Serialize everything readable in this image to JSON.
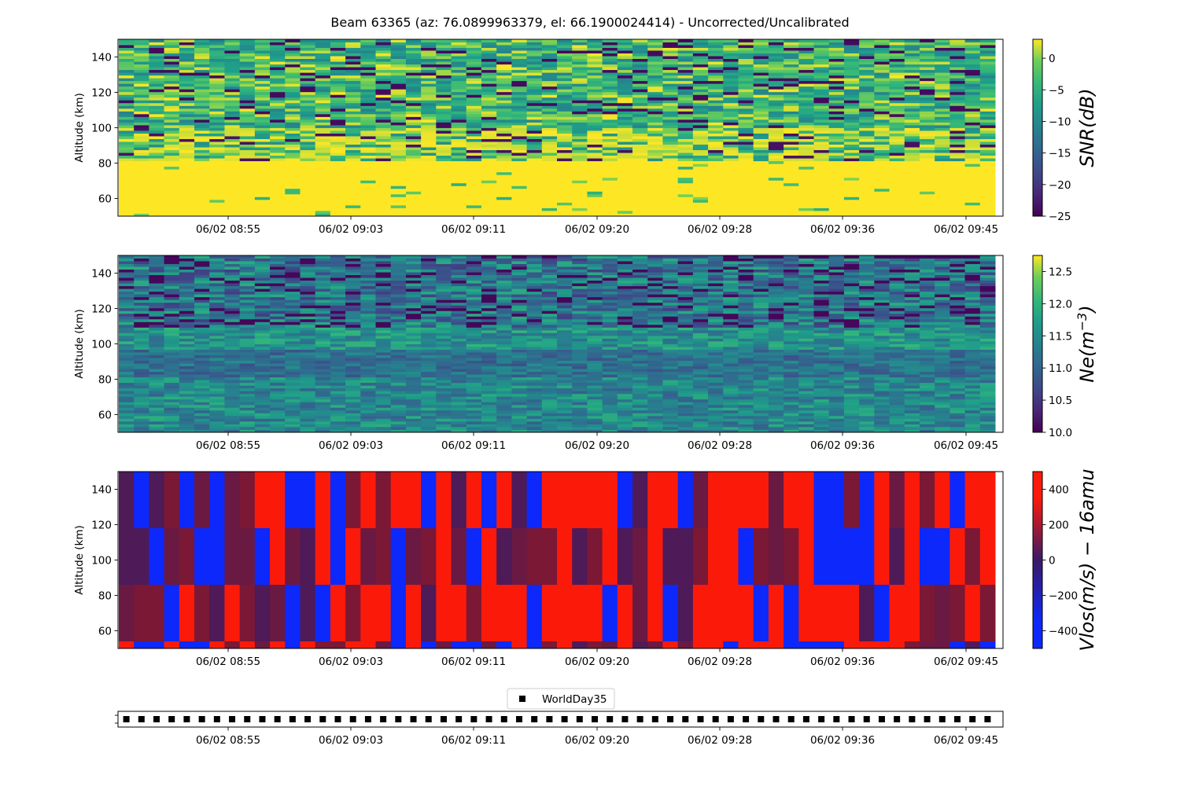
{
  "chart_data": {
    "title": "Beam 63365 (az: 76.0899963379, el: 66.1900024414) - Uncorrected/Uncalibrated",
    "x_tick_labels": [
      "06/02 08:55",
      "06/02 09:03",
      "06/02 09:11",
      "06/02 09:20",
      "06/02 09:28",
      "06/02 09:36",
      "06/02 09:45"
    ],
    "x_range_approx": [
      "06/02 08:46",
      "06/02 09:46"
    ],
    "panels": [
      {
        "type": "heatmap",
        "ylabel": "Altitude (km)",
        "ylim": [
          50,
          150
        ],
        "y_ticks": [
          60,
          80,
          100,
          120,
          140
        ],
        "colormap": "viridis",
        "colorbar_label": "SNR(dB)",
        "colorbar_range": [
          -25,
          3
        ],
        "colorbar_ticks": [
          0,
          -5,
          -10,
          -15,
          -20,
          -25
        ],
        "tick_text": [
          "0",
          "−5",
          "−10",
          "−15",
          "−20",
          "−25"
        ],
        "description": "below ~82 km saturated high SNR (~3 dB); 82-100 km mixed; above 100 km noisy -25 to 0 dB"
      },
      {
        "type": "heatmap",
        "ylabel": "Altitude (km)",
        "ylim": [
          50,
          150
        ],
        "y_ticks": [
          60,
          80,
          100,
          120,
          140
        ],
        "colormap": "viridis",
        "colorbar_label": "Ne(m^-3)",
        "colorbar_range": [
          10.0,
          12.75
        ],
        "colorbar_ticks": [
          12.5,
          12.0,
          11.5,
          11.0,
          10.5,
          10.0
        ],
        "tick_text": [
          "12.5",
          "12.0",
          "11.5",
          "11.0",
          "10.5",
          "10.0"
        ],
        "description": "values mostly 10.5-11.8, darker band near 85-95 km, noisy above 110 km"
      },
      {
        "type": "heatmap",
        "ylabel": "Altitude (km)",
        "ylim": [
          50,
          150
        ],
        "y_ticks": [
          60,
          80,
          100,
          120,
          140
        ],
        "colormap": "bwr-dark",
        "colorbar_label": "Vlos(m/s) - 16amu",
        "colorbar_range": [
          -500,
          500
        ],
        "colorbar_ticks": [
          400,
          200,
          0,
          -200,
          -400
        ],
        "tick_text": [
          "400",
          "200",
          "0",
          "−200",
          "−400"
        ],
        "altitude_bands_km": [
          [
            118,
            150
          ],
          [
            86,
            118
          ],
          [
            54,
            86
          ],
          [
            50,
            54
          ]
        ],
        "description": "mostly saturated at +/-500 m/s in vertical bands"
      },
      {
        "type": "scatter",
        "legend": [
          "WorldDay35"
        ],
        "marker": "square",
        "marker_color": "#000000",
        "description": "one black square marker per profile along the time axis"
      }
    ]
  }
}
